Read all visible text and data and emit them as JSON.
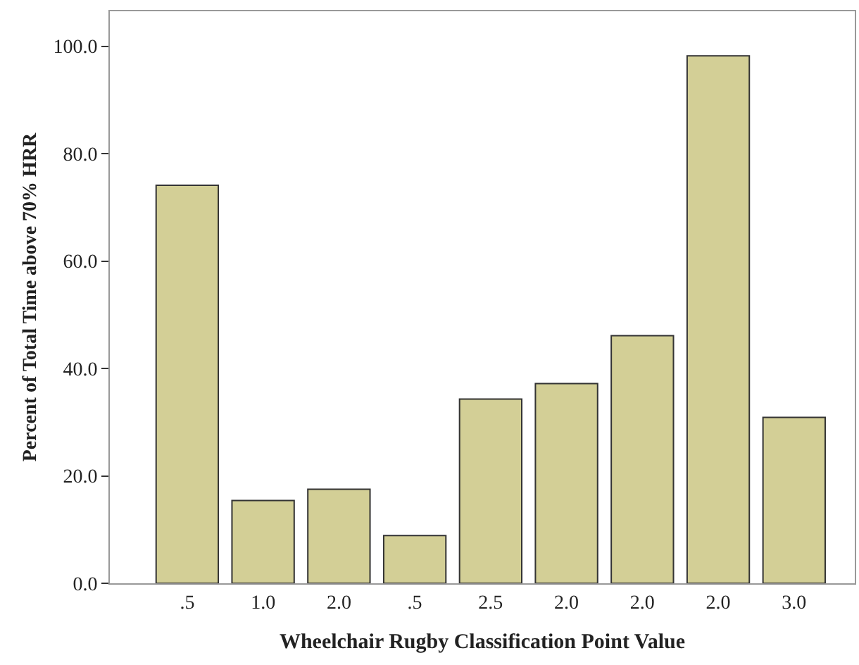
{
  "chart_data": {
    "type": "bar",
    "xlabel": "Wheelchair Rugby Classification Point Value",
    "ylabel": "Percent of Total Time above 70% HRR",
    "categories": [
      ".5",
      "1.0",
      "2.0",
      ".5",
      "2.5",
      "2.0",
      "2.0",
      "2.0",
      "3.0"
    ],
    "values": [
      74.1,
      15.4,
      17.5,
      8.9,
      34.3,
      37.2,
      46.1,
      98.2,
      30.9
    ],
    "color": "#d3cf96",
    "ylim": [
      0,
      106.5
    ],
    "yticks": [
      {
        "value": 0,
        "label": "0.0"
      },
      {
        "value": 20,
        "label": "20.0"
      },
      {
        "value": 40,
        "label": "40.0"
      },
      {
        "value": 60,
        "label": "60.0"
      },
      {
        "value": 80,
        "label": "80.0"
      },
      {
        "value": 100,
        "label": "100.0"
      }
    ],
    "grid": false
  }
}
